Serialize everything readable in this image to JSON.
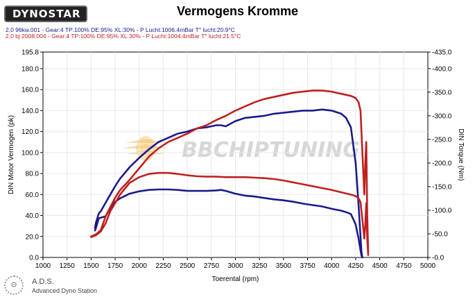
{
  "header": {
    "brand": "DYNOSTAR",
    "title": "Vermogens Kromme",
    "runs": [
      "2,0 96kw.001 - Gear:4 TP:100% DE:95% XL:30%    - P Lucht:1006.4mBar T° lucht:20.9°C",
      "2,0 bj 2008.004 - Gear:4 TP:100% DE:95% XL:30%    - P Lucht:1004.4mBar T° lucht:21.5°C"
    ]
  },
  "watermark": {
    "text": "BBCHIPTUNING"
  },
  "footer": {
    "ads_title": "A.D.S.",
    "ads_subtitle": "Advanced Dyno Station"
  },
  "colors": {
    "blue": "#1a1a8c",
    "red": "#c0201f",
    "grid": "#e8e8e8",
    "watermark": "#f2c36b"
  },
  "chart_data": {
    "type": "line",
    "title": "Vermogens Kromme",
    "xlabel": "Toerental (rpm)",
    "ylabel": "DIN Motor Vermogen (pk)",
    "y2label": "DIN Torque (Nm)",
    "xlim": [
      1000,
      5000
    ],
    "ylim": [
      0,
      195.8
    ],
    "y2lim": [
      0,
      435
    ],
    "x_ticks": [
      1000,
      1250,
      1500,
      1750,
      2000,
      2250,
      2500,
      2750,
      3000,
      3250,
      3500,
      3750,
      4000,
      4250,
      4500,
      4750,
      5000
    ],
    "y_ticks": [
      0.0,
      20.0,
      40.0,
      60.0,
      80.0,
      100.0,
      120.0,
      140.0,
      160.0,
      180.0,
      195.8
    ],
    "y2_ticks": [
      0.0,
      50.0,
      100.0,
      150.0,
      200.0,
      250.0,
      300.0,
      350.0,
      400.0,
      435.0
    ],
    "y_tick_labels": [
      "0.0",
      "20.0",
      "40.0",
      "60.0",
      "80.0",
      "100.0",
      "120.0",
      "140.0",
      "160.0",
      "180.0",
      "195.8"
    ],
    "y2_tick_labels": [
      "-0.0",
      "-50.0",
      "-100.0",
      "-150.0",
      "-200.0",
      "-250.0",
      "-300.0",
      "-350.0",
      "-400.0",
      "-435.0"
    ],
    "grid": true,
    "series": [
      {
        "name": "2,0 96kw.001 - Gear:4 TP:100% DE:95% XL:30%",
        "quantity": "power",
        "color": "#1a1a8c",
        "x": [
          1540,
          1550,
          1580,
          1600,
          1650,
          1700,
          1750,
          1800,
          1900,
          2000,
          2100,
          2200,
          2300,
          2400,
          2500,
          2600,
          2700,
          2800,
          2850,
          2900,
          3000,
          3100,
          3200,
          3300,
          3400,
          3500,
          3600,
          3700,
          3800,
          3900,
          4000,
          4100,
          4150,
          4200,
          4250,
          4280,
          4300,
          4310,
          4320
        ],
        "y": [
          28,
          33,
          42,
          44,
          52,
          60,
          68,
          75,
          86,
          95,
          103,
          110,
          114,
          118,
          120,
          123,
          124,
          126,
          126,
          125,
          130,
          133,
          134,
          135,
          137,
          138,
          139,
          140,
          140,
          141,
          140,
          137,
          133,
          124,
          90,
          50,
          20,
          5,
          0
        ]
      },
      {
        "name": "2,0 96kw.001 - Gear:4 TP:100% DE:95% XL:30%",
        "quantity": "torque",
        "color": "#1a1a8c",
        "x": [
          1540,
          1550,
          1580,
          1600,
          1650,
          1700,
          1750,
          1800,
          1900,
          2000,
          2100,
          2200,
          2300,
          2400,
          2500,
          2600,
          2700,
          2800,
          2850,
          2900,
          3000,
          3100,
          3200,
          3300,
          3400,
          3500,
          3600,
          3700,
          3800,
          3900,
          4000,
          4100,
          4150,
          4200,
          4250,
          4280,
          4300,
          4310,
          4320
        ],
        "y": [
          57,
          62,
          83,
          84,
          87,
          105,
          118,
          125,
          135,
          140,
          143,
          144,
          144,
          143,
          141,
          141,
          141,
          142,
          143,
          141,
          135,
          131,
          129,
          126,
          123,
          121,
          118,
          114,
          111,
          108,
          103,
          99,
          96,
          92,
          70,
          40,
          15,
          4,
          0
        ]
      },
      {
        "name": "2,0 bj 2008.004 - Gear:4 TP:100% DE:95% XL:30%",
        "quantity": "power",
        "color": "#c0201f",
        "x": [
          1500,
          1550,
          1600,
          1650,
          1700,
          1750,
          1800,
          1900,
          2000,
          2100,
          2200,
          2300,
          2400,
          2500,
          2600,
          2700,
          2800,
          2900,
          3000,
          3100,
          3200,
          3300,
          3400,
          3500,
          3600,
          3700,
          3800,
          3900,
          4000,
          4100,
          4200,
          4250,
          4280,
          4300,
          4320,
          4340,
          4350,
          4360,
          4370,
          4380
        ],
        "y": [
          20,
          22,
          26,
          39,
          48,
          57,
          64,
          74,
          85,
          96,
          104,
          110,
          114,
          118,
          123,
          126,
          131,
          135,
          140,
          144,
          148,
          151,
          153,
          155,
          157,
          158,
          159,
          159,
          158,
          156,
          154,
          152,
          148,
          140,
          100,
          60,
          90,
          110,
          40,
          5
        ]
      },
      {
        "name": "2,0 bj 2008.004 - Gear:4 TP:100% DE:95% XL:30%",
        "quantity": "torque",
        "color": "#c0201f",
        "x": [
          1500,
          1550,
          1600,
          1650,
          1700,
          1750,
          1800,
          1900,
          2000,
          2100,
          2200,
          2300,
          2400,
          2500,
          2600,
          2700,
          2800,
          2900,
          3000,
          3100,
          3200,
          3300,
          3400,
          3500,
          3600,
          3700,
          3800,
          3900,
          4000,
          4100,
          4200,
          4250,
          4280,
          4300,
          4320,
          4340,
          4350,
          4360,
          4370,
          4380
        ],
        "y": [
          43,
          47,
          55,
          72,
          98,
          115,
          133,
          158,
          170,
          177,
          179,
          179,
          177,
          174,
          172,
          171,
          171,
          170,
          170,
          170,
          169,
          168,
          166,
          163,
          159,
          155,
          151,
          147,
          143,
          138,
          133,
          130,
          125,
          117,
          80,
          40,
          70,
          115,
          40,
          5
        ]
      }
    ]
  }
}
